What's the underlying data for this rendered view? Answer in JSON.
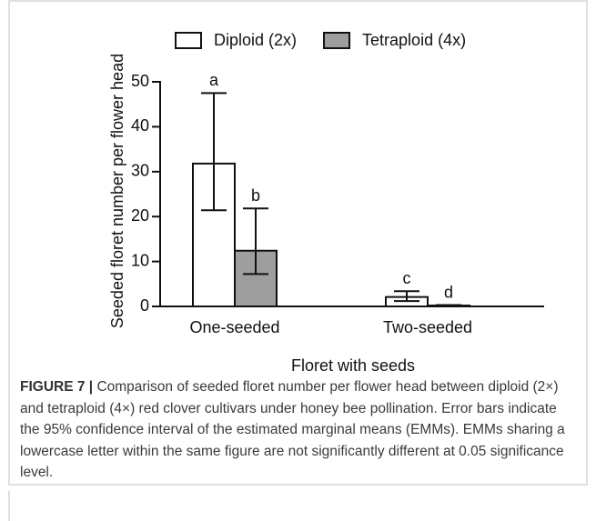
{
  "chart_data": {
    "type": "bar",
    "y_label": "Seeded floret number per flower head",
    "x_label": "Floret with seeds",
    "categories": [
      "One-seeded",
      "Two-seeded"
    ],
    "series": [
      {
        "name": "Diploid (2x)",
        "color": "#ffffff",
        "values": [
          31.8,
          2.1
        ],
        "ci_low": [
          21.4,
          1.2
        ],
        "ci_high": [
          47.5,
          3.4
        ],
        "labels": [
          "a",
          "c"
        ]
      },
      {
        "name": "Tetraploid (4x)",
        "color": "#9e9e9e",
        "values": [
          12.4,
          0.2
        ],
        "ci_low": [
          7.2,
          0.1
        ],
        "ci_high": [
          21.8,
          0.3
        ],
        "labels": [
          "b",
          "d"
        ]
      }
    ],
    "ylim": [
      0,
      50
    ],
    "yticks": [
      0,
      10,
      20,
      30,
      40,
      50
    ],
    "legend": "top"
  },
  "caption": {
    "label": "FIGURE 7 |",
    "text": "Comparison of seeded floret number per flower head between diploid (2×) and tetraploid (4×) red clover cultivars under honey bee pollination. Error bars indicate the 95% confidence interval of the estimated marginal means (EMMs). EMMs sharing a lowercase letter within the same figure are not significantly different at 0.05 significance level."
  }
}
